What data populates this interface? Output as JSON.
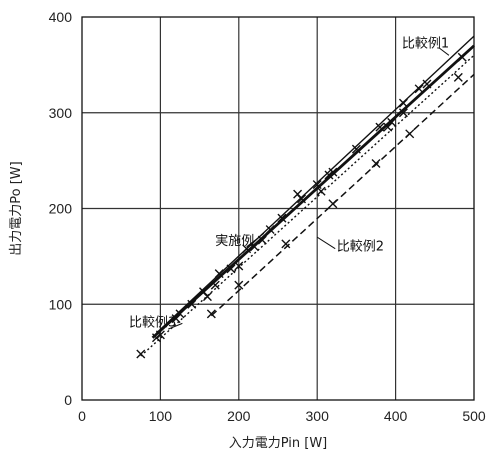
{
  "chart_data": {
    "type": "line",
    "xlabel": "入力電力Pin [W]",
    "ylabel": "出力電力Po [W]",
    "xlim": [
      0,
      500
    ],
    "ylim": [
      0,
      400
    ],
    "x_ticks": [
      "0",
      "100",
      "200",
      "300",
      "400",
      "500"
    ],
    "y_ticks": [
      "0",
      "100",
      "200",
      "300",
      "400"
    ],
    "grid": true,
    "series": [
      {
        "name": "実施例",
        "line": "solid-thick",
        "fit": [
          [
            90,
            65
          ],
          [
            500,
            370
          ]
        ],
        "points": [
          [
            100,
            68
          ],
          [
            120,
            85
          ],
          [
            140,
            100
          ],
          [
            155,
            113
          ],
          [
            170,
            120
          ],
          [
            190,
            137
          ],
          [
            200,
            140
          ],
          [
            220,
            160
          ],
          [
            240,
            178
          ],
          [
            255,
            190
          ],
          [
            280,
            210
          ],
          [
            300,
            225
          ],
          [
            315,
            235
          ],
          [
            350,
            262
          ],
          [
            380,
            285
          ],
          [
            410,
            310
          ],
          [
            430,
            325
          ],
          [
            485,
            358
          ]
        ]
      },
      {
        "name": "比較例1",
        "line": "solid-thin",
        "fit": [
          [
            95,
            70
          ],
          [
            500,
            380
          ]
        ],
        "points": [
          [
            175,
            132
          ],
          [
            210,
            158
          ],
          [
            275,
            215
          ],
          [
            320,
            238
          ],
          [
            395,
            290
          ],
          [
            440,
            330
          ]
        ]
      },
      {
        "name": "比較例2",
        "line": "dashed",
        "fit": [
          [
            165,
            88
          ],
          [
            500,
            340
          ]
        ],
        "points": [
          [
            165,
            90
          ],
          [
            200,
            120
          ],
          [
            260,
            163
          ],
          [
            320,
            205
          ],
          [
            375,
            247
          ],
          [
            418,
            278
          ],
          [
            480,
            337
          ]
        ]
      },
      {
        "name": "比較例3",
        "line": "dotted",
        "fit": [
          [
            75,
            46
          ],
          [
            500,
            360
          ]
        ],
        "points": [
          [
            75,
            48
          ],
          [
            95,
            65
          ],
          [
            125,
            90
          ],
          [
            160,
            108
          ],
          [
            230,
            167
          ],
          [
            305,
            218
          ],
          [
            390,
            285
          ],
          [
            410,
            300
          ]
        ]
      }
    ],
    "annotations": [
      {
        "text": "比較例1",
        "x": 408,
        "y": 368
      },
      {
        "text": "実施例",
        "x": 170,
        "y": 162
      },
      {
        "text": "比較例2",
        "x": 325,
        "y": 156
      },
      {
        "text": "比較例3",
        "x": 60,
        "y": 77
      }
    ]
  }
}
